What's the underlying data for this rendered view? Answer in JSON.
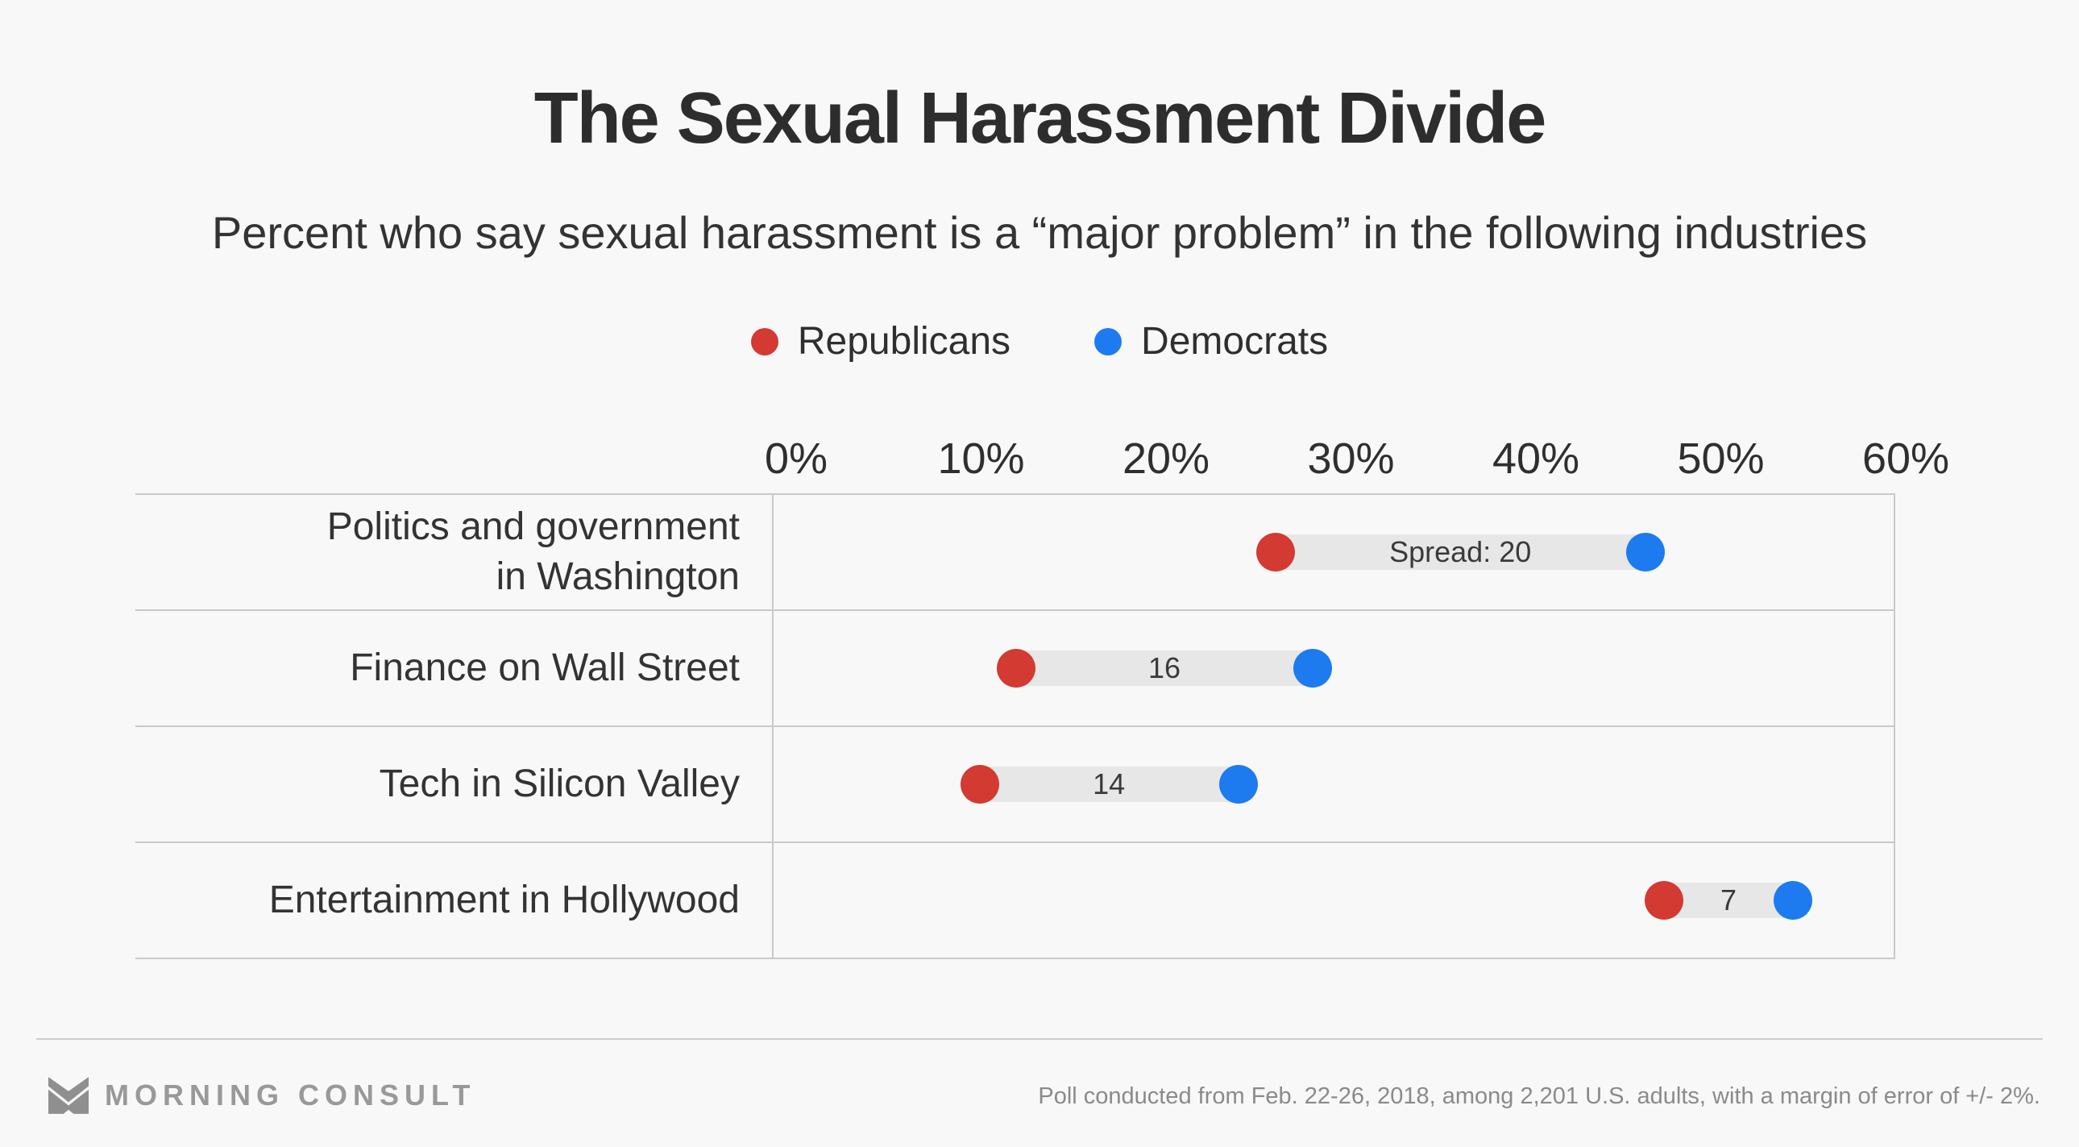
{
  "page": {
    "background": "#f8f8f8"
  },
  "header": {
    "title": "The Sexual Harassment Divide",
    "subtitle": "Percent who say sexual harassment is a “major problem” in the following industries"
  },
  "legend": [
    {
      "label": "Republicans",
      "color": "#d33a32"
    },
    {
      "label": "Democrats",
      "color": "#1d7bef"
    }
  ],
  "chart_data": {
    "type": "dumbbell",
    "categories": [
      "Politics and government in Washington",
      "Finance on Wall Street",
      "Tech in Silicon Valley",
      "Entertainment in Hollywood"
    ],
    "category_label_lines": [
      [
        "Politics and government",
        "in Washington"
      ],
      [
        "Finance on Wall Street"
      ],
      [
        "Tech in Silicon Valley"
      ],
      [
        "Entertainment in Hollywood"
      ]
    ],
    "series": [
      {
        "name": "Republicans",
        "color": "#d33a32",
        "values": [
          26,
          12,
          10,
          47
        ]
      },
      {
        "name": "Democrats",
        "color": "#1d7bef",
        "values": [
          46,
          28,
          24,
          54
        ]
      }
    ],
    "spreads": [
      20,
      16,
      14,
      7
    ],
    "spread_labels": [
      "Spread: 20",
      "16",
      "14",
      "7"
    ],
    "axis": {
      "min": 0,
      "max": 60,
      "tick_labels": [
        "0%",
        "10%",
        "20%",
        "30%",
        "40%",
        "50%",
        "60%"
      ]
    },
    "colors": {
      "bar": "#e7e7e7",
      "grid": "#c9c9c9"
    }
  },
  "footer": {
    "brand": "MORNING CONSULT",
    "note": "Poll conducted from Feb. 22-26, 2018, among 2,201 U.S. adults, with a margin of error of +/- 2%."
  }
}
